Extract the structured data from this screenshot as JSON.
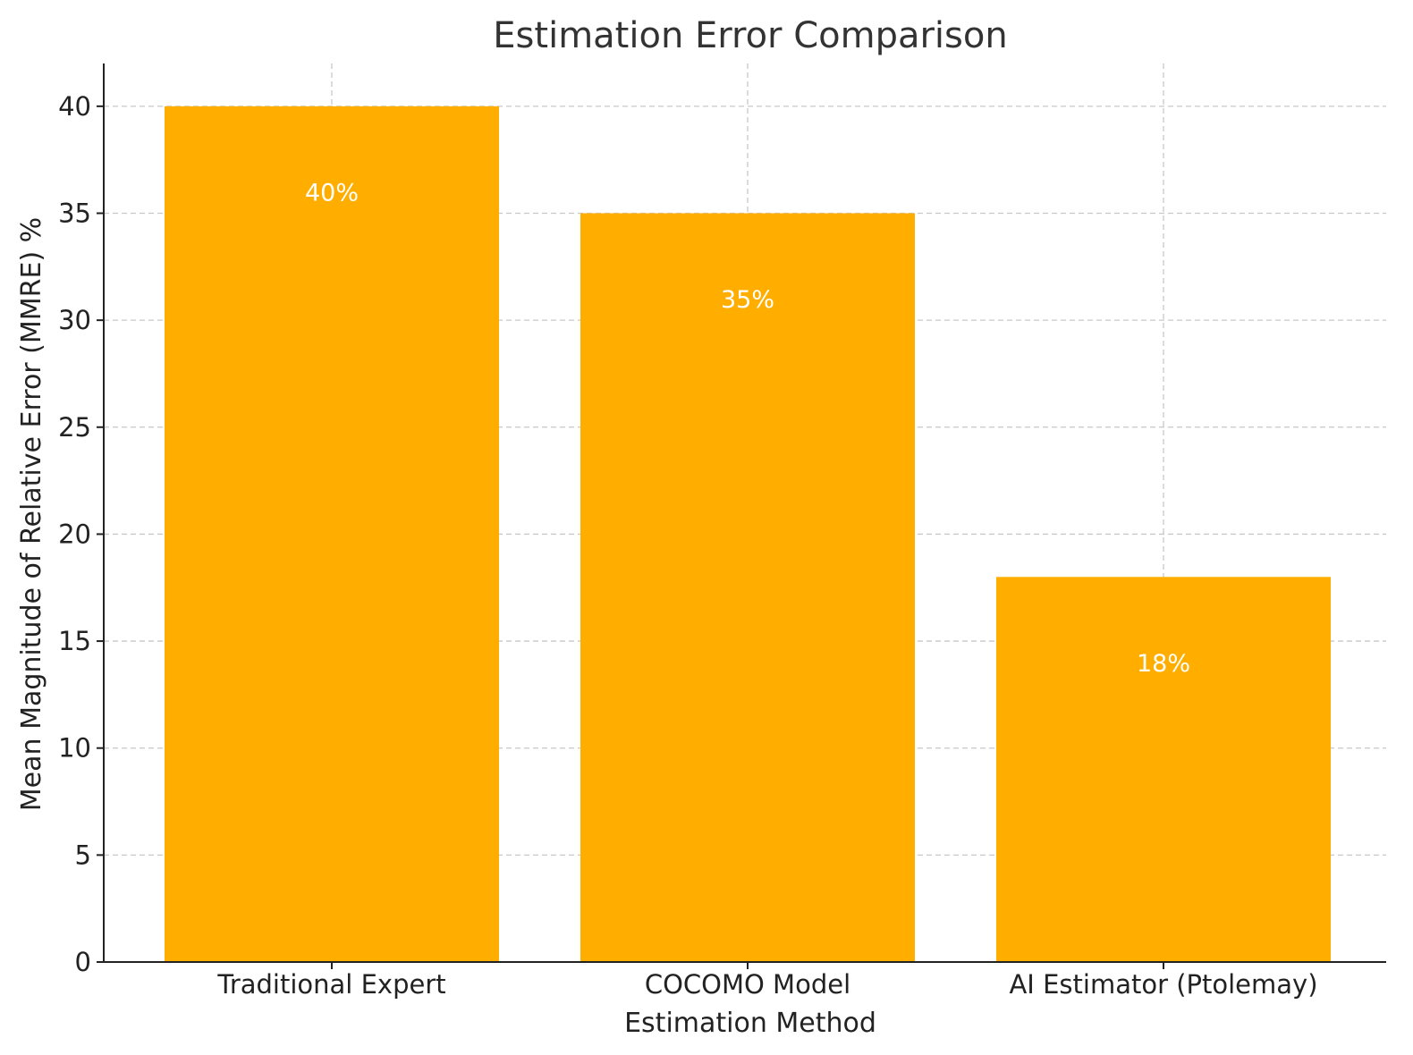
{
  "chart_data": {
    "type": "bar",
    "title": "Estimation Error Comparison",
    "xlabel": "Estimation Method",
    "ylabel": "Mean Magnitude of Relative Error (MMRE) %",
    "categories": [
      "Traditional Expert",
      "COCOMO Model",
      "AI Estimator (Ptolemay)"
    ],
    "values": [
      40,
      35,
      18
    ],
    "data_labels": [
      "40%",
      "35%",
      "18%"
    ],
    "ylim": [
      0,
      42
    ],
    "yticks": [
      0,
      5,
      10,
      15,
      20,
      25,
      30,
      35,
      40
    ],
    "grid": true,
    "colors": {
      "bar": "#FFAE00"
    }
  }
}
